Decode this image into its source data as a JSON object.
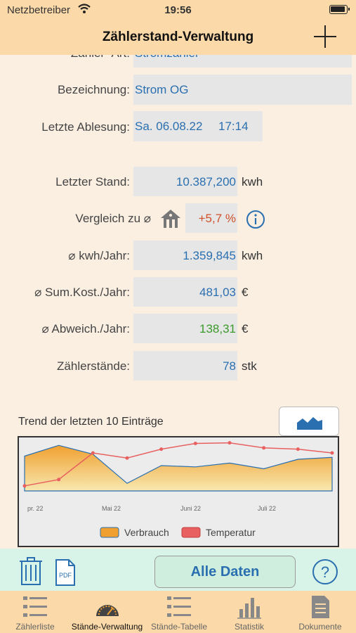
{
  "status": {
    "carrier": "Netzbetreiber",
    "time": "19:56"
  },
  "nav": {
    "title": "Zählerstand-Verwaltung"
  },
  "form": {
    "cut_label": "Zähler- Art:",
    "cut_value": "Stromzähler",
    "bezeichnung_label": "Bezeichnung:",
    "bezeichnung_value": "Strom OG",
    "ablesung_label": "Letzte Ablesung:",
    "ablesung_date": "Sa. 06.08.22",
    "ablesung_time": "17:14",
    "stand_label": "Letzter Stand:",
    "stand_value": "10.387,200",
    "stand_unit": "kwh",
    "vergleich_label": "Vergleich zu ⌀",
    "vergleich_value": "+5,7 %",
    "kwh_label": "⌀ kwh/Jahr:",
    "kwh_value": "1.359,845",
    "kwh_unit": "kwh",
    "kost_label": "⌀ Sum.Kost./Jahr:",
    "kost_value": "481,03",
    "kost_unit": "€",
    "abw_label": "⌀ Abweich./Jahr:",
    "abw_value": "138,31",
    "abw_unit": "€",
    "count_label": "Zählerstände:",
    "count_value": "78",
    "count_unit": "stk"
  },
  "chart_data": {
    "type": "area",
    "title": "Trend der letzten 10 Einträge",
    "x_ticks": [
      "pr. 22",
      "Mai 22",
      "Juni 22",
      "Juli 22"
    ],
    "series": [
      {
        "name": "Verbrauch",
        "color": "#f0a030",
        "values": [
          55,
          72,
          58,
          12,
          40,
          38,
          44,
          35,
          50,
          53
        ]
      },
      {
        "name": "Temperatur",
        "color": "#e86060",
        "values": [
          8,
          18,
          60,
          52,
          66,
          75,
          76,
          68,
          66,
          60
        ]
      }
    ],
    "legend": "bottom",
    "grid": false
  },
  "toolbar": {
    "alle_label": "Alle Daten"
  },
  "tabs": [
    {
      "label": "Zählerliste"
    },
    {
      "label": "Stände-Verwaltung"
    },
    {
      "label": "Stände-Tabelle"
    },
    {
      "label": "Statistik"
    },
    {
      "label": "Dokumente"
    }
  ],
  "colors": {
    "header": "#fbd9a8",
    "accent": "#2a6fb0",
    "positive": "#3a9a2a",
    "negative": "#d0502a"
  },
  "icons": [
    "wifi-icon",
    "battery-icon",
    "plus-icon",
    "house-icon",
    "info-icon",
    "area-chart-icon",
    "trash-icon",
    "pdf-icon",
    "help-icon"
  ]
}
